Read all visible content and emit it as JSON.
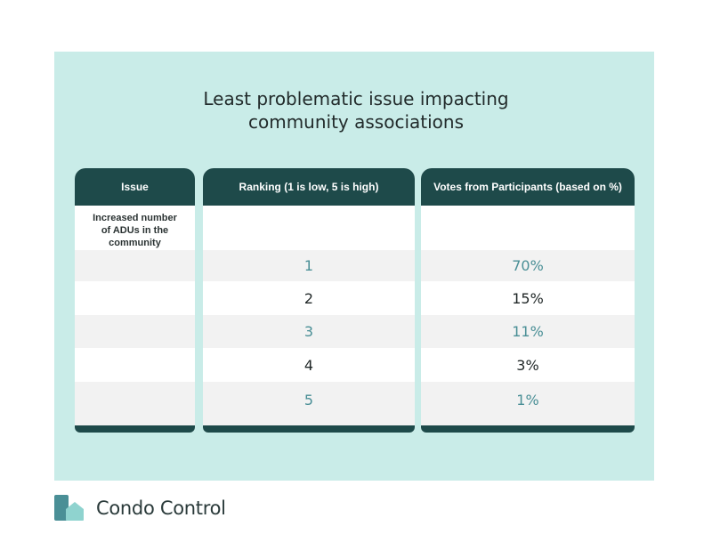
{
  "title": {
    "line1": "Least problematic issue impacting",
    "line2": "community associations"
  },
  "table": {
    "headers": {
      "issue": "Issue",
      "ranking": "Ranking (1 is low, 5 is high)",
      "votes": "Votes from Participants (based on %)"
    },
    "issue_lines": [
      "Increased number",
      "of ADUs in the",
      "community"
    ],
    "rows": [
      {
        "rank": "1",
        "votes": "70%"
      },
      {
        "rank": "2",
        "votes": "15%"
      },
      {
        "rank": "3",
        "votes": "11%"
      },
      {
        "rank": "4",
        "votes": "3%"
      },
      {
        "rank": "5",
        "votes": "1%"
      }
    ]
  },
  "colors": {
    "panel_background": "#c9ece8",
    "header_background": "#1e4a4a",
    "accent_teal": "#4a8f96",
    "shaded_row": "#f2f2f2"
  },
  "brand": {
    "name": "Condo Control",
    "logo_icon": "condo-control-logo-icon"
  }
}
